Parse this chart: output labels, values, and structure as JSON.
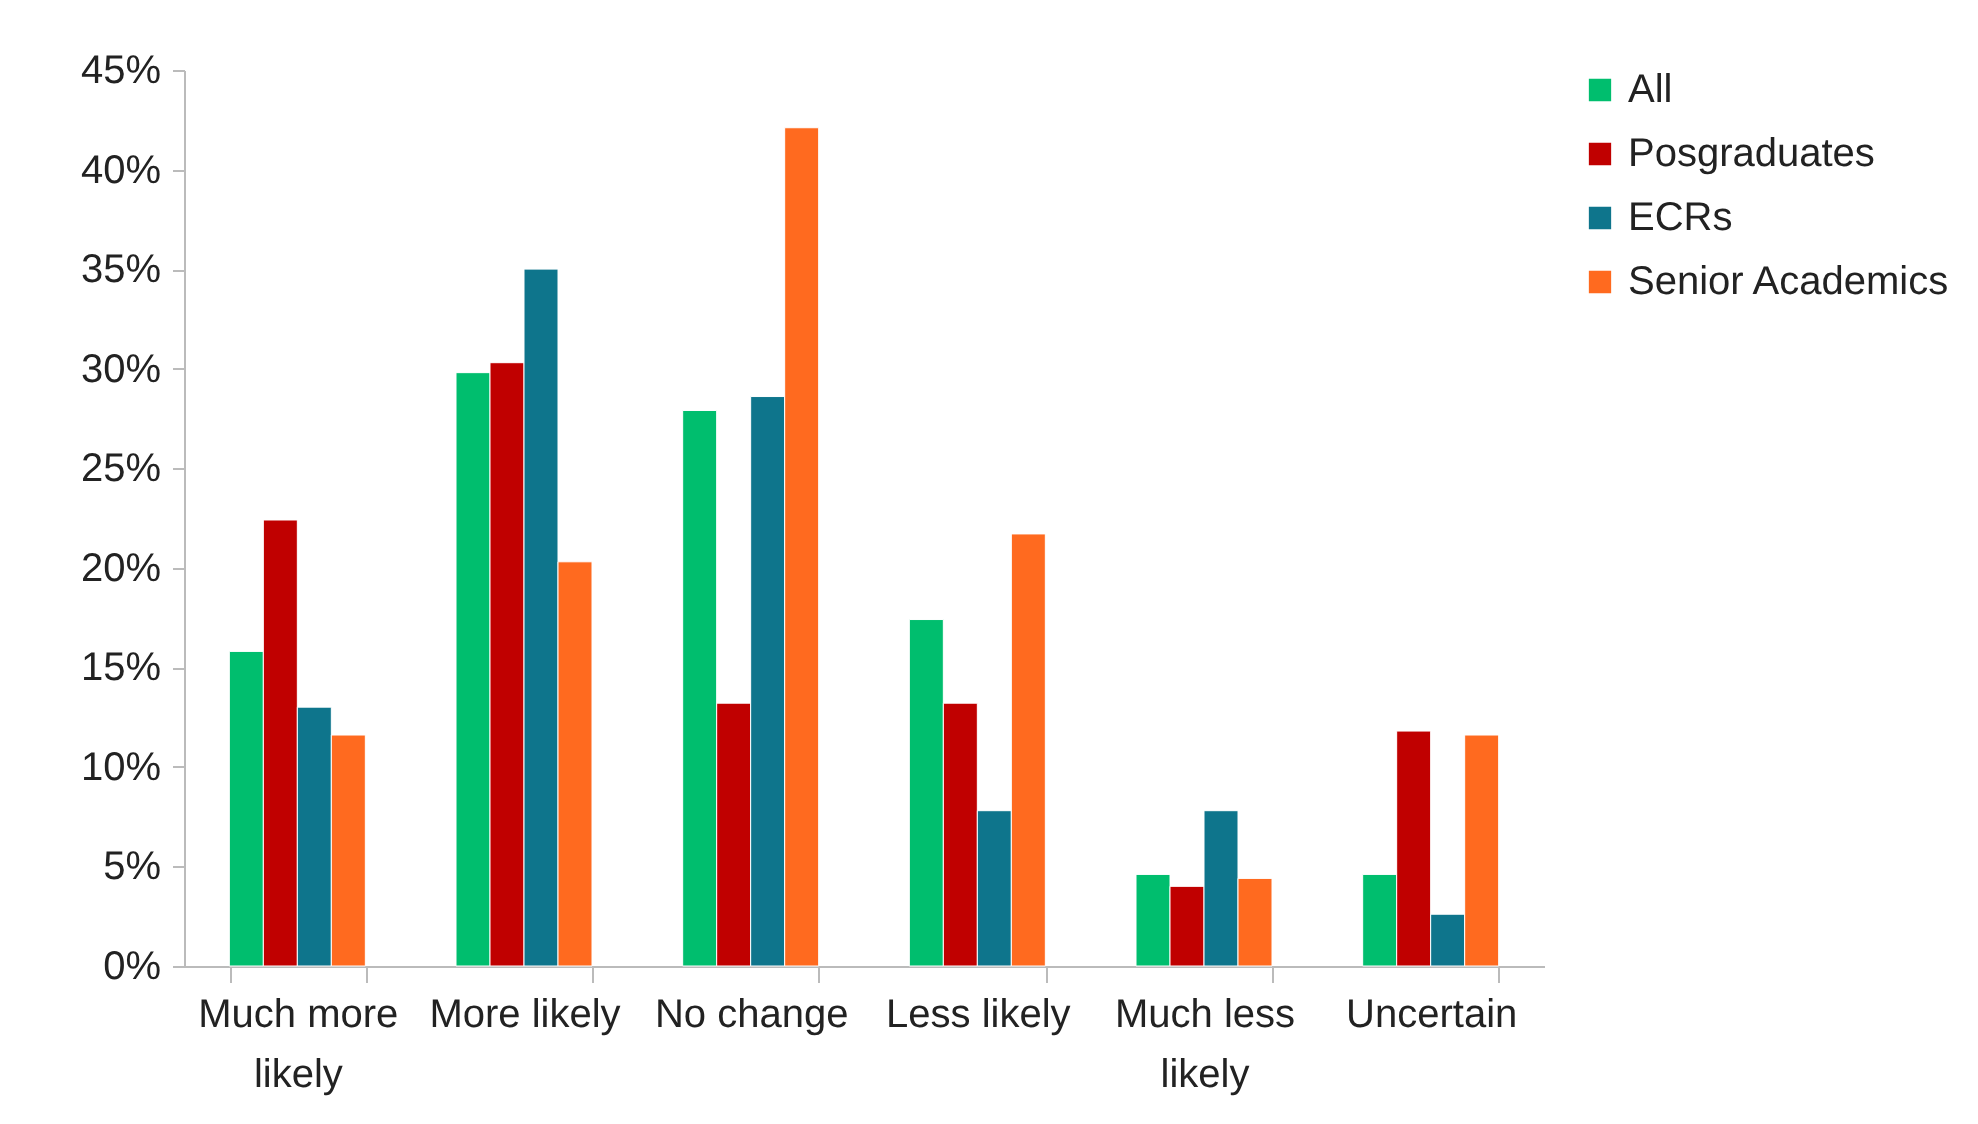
{
  "chart_data": {
    "type": "bar",
    "categories": [
      "Much more likely",
      "More likely",
      "No change",
      "Less likely",
      "Much less likely",
      "Uncertain"
    ],
    "series": [
      {
        "name": "All",
        "color": "#00be6e",
        "values": [
          15.8,
          29.8,
          27.9,
          17.4,
          4.6,
          4.6
        ]
      },
      {
        "name": "Posgraduates",
        "color": "#c00000",
        "values": [
          22.4,
          30.3,
          13.2,
          13.2,
          4.0,
          11.8
        ]
      },
      {
        "name": "ECRs",
        "color": "#0e758c",
        "values": [
          13.0,
          35.0,
          28.6,
          7.8,
          7.8,
          2.6
        ]
      },
      {
        "name": "Senior Academics",
        "color": "#ff6a1f",
        "values": [
          11.6,
          20.3,
          42.1,
          21.7,
          4.4,
          11.6
        ]
      }
    ],
    "ylim": [
      0,
      45
    ],
    "yticks": [
      {
        "value": 0,
        "label": "0%"
      },
      {
        "value": 5,
        "label": "5%"
      },
      {
        "value": 10,
        "label": "10%"
      },
      {
        "value": 15,
        "label": "15%"
      },
      {
        "value": 20,
        "label": "20%"
      },
      {
        "value": 25,
        "label": "25%"
      },
      {
        "value": 30,
        "label": "30%"
      },
      {
        "value": 35,
        "label": "35%"
      },
      {
        "value": 40,
        "label": "40%"
      },
      {
        "value": 45,
        "label": "45%"
      }
    ],
    "grid": false,
    "legend": "right"
  }
}
